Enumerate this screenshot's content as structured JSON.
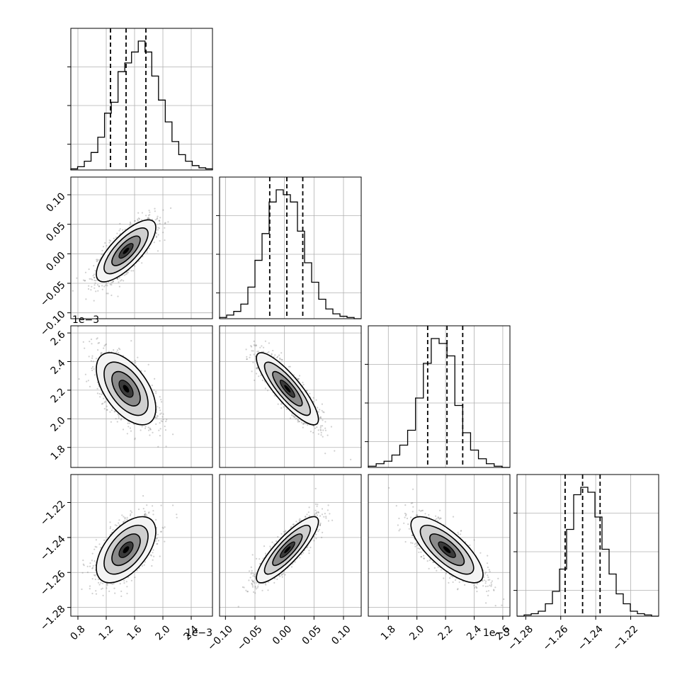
{
  "colors": {
    "axis": "#000000",
    "grid": "#b0b0b0",
    "scatter": "#777777",
    "hist": "#000000",
    "contour": "#000000",
    "fill_light": "#f5f5f5"
  },
  "chart_data": {
    "type": "corner",
    "grid": true,
    "parameters": [
      {
        "mean": 1.48,
        "sd": 0.2,
        "range": [
          0.7,
          2.7
        ],
        "quantiles": [
          1.26,
          1.48,
          1.76
        ],
        "ticks": [
          "0.8",
          "1.2",
          "1.6",
          "2.0",
          "2.4"
        ],
        "tick_values": [
          0.8,
          1.2,
          1.6,
          2.0,
          2.4
        ],
        "offset": "1e−3",
        "hist": [
          1,
          3,
          8,
          16,
          30,
          52,
          62,
          90,
          98,
          108,
          118,
          108,
          86,
          64,
          44,
          26,
          14,
          8,
          4,
          2,
          1
        ]
      },
      {
        "mean": 0.005,
        "sd": 0.025,
        "range": [
          -0.11,
          0.13
        ],
        "quantiles": [
          -0.025,
          0.004,
          0.031
        ],
        "ticks": [
          "−0.10",
          "−0.05",
          "0.00",
          "0.05",
          "0.10"
        ],
        "tick_values": [
          -0.1,
          -0.05,
          0.0,
          0.05,
          0.1
        ],
        "offset": "",
        "hist": [
          1,
          3,
          6,
          12,
          26,
          48,
          70,
          96,
          106,
          102,
          96,
          72,
          46,
          30,
          16,
          8,
          4,
          2,
          1,
          0
        ]
      },
      {
        "mean": 2.21,
        "sd": 0.12,
        "range": [
          1.66,
          2.65
        ],
        "quantiles": [
          2.075,
          2.21,
          2.32
        ],
        "ticks": [
          "1.8",
          "2.0",
          "2.2",
          "2.4",
          "2.6"
        ],
        "tick_values": [
          1.8,
          2.0,
          2.2,
          2.4,
          2.6
        ],
        "offset": "1e−3",
        "hist": [
          1,
          3,
          5,
          10,
          18,
          30,
          56,
          84,
          104,
          100,
          90,
          50,
          28,
          14,
          7,
          3,
          1,
          0
        ]
      },
      {
        "mean": -1.247,
        "sd": 0.009,
        "range": [
          -1.285,
          -1.204
        ],
        "quantiles": [
          -1.2575,
          -1.2475,
          -1.2375
        ],
        "ticks": [
          "−1.28",
          "−1.26",
          "−1.24",
          "−1.22"
        ],
        "tick_values": [
          -1.28,
          -1.26,
          -1.24,
          -1.22
        ],
        "offset": "",
        "hist": [
          0,
          1,
          2,
          4,
          10,
          20,
          38,
          70,
          98,
          104,
          100,
          80,
          54,
          34,
          18,
          10,
          4,
          2,
          1,
          0
        ]
      }
    ],
    "correlations": [
      [
        0,
        1,
        0.75
      ],
      [
        0,
        2,
        -0.55
      ],
      [
        1,
        2,
        -0.85
      ],
      [
        0,
        3,
        0.55
      ],
      [
        1,
        3,
        0.85
      ],
      [
        2,
        3,
        -0.75
      ]
    ],
    "y_axis_labels": {
      "1": {
        "ticks": [
          "0.10",
          "0.05",
          "0.00",
          "−0.05",
          "−0.10"
        ],
        "tick_values": [
          0.1,
          0.05,
          0.0,
          -0.05,
          -0.1
        ],
        "offset": ""
      },
      "2": {
        "ticks": [
          "2.6",
          "2.4",
          "2.2",
          "2.0",
          "1.8"
        ],
        "tick_values": [
          2.6,
          2.4,
          2.2,
          2.0,
          1.8
        ],
        "offset": "1e−3"
      },
      "3": {
        "ticks": [
          "−1.22",
          "−1.24",
          "−1.26",
          "−1.28"
        ],
        "tick_values": [
          -1.22,
          -1.24,
          -1.26,
          -1.28
        ],
        "offset": ""
      }
    }
  }
}
